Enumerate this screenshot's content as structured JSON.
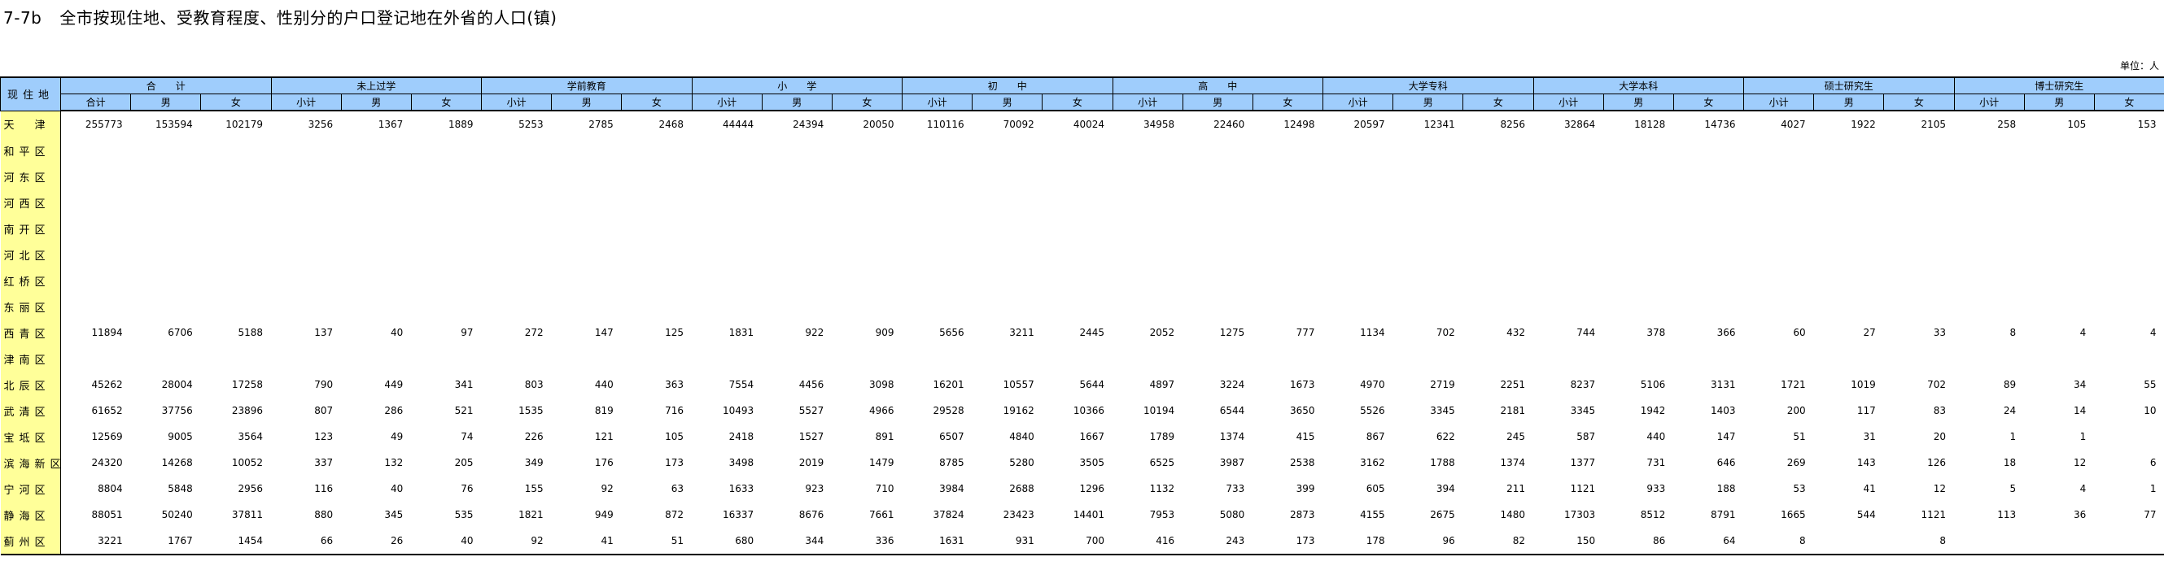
{
  "title": {
    "code": "7-7b",
    "text": "全市按现住地、受教育程度、性别分的户口登记地在外省的人口(镇)"
  },
  "unit": "单位：人",
  "header": {
    "region_label": "现住地",
    "groups": [
      "合　　计",
      "未上过学",
      "学前教育",
      "小　　学",
      "初　　中",
      "高　　中",
      "大学专科",
      "大学本科",
      "硕士研究生",
      "博士研究生"
    ],
    "subs": [
      [
        "合计",
        "男",
        "女"
      ],
      [
        "小计",
        "男",
        "女"
      ],
      [
        "小计",
        "男",
        "女"
      ],
      [
        "小计",
        "男",
        "女"
      ],
      [
        "小计",
        "男",
        "女"
      ],
      [
        "小计",
        "男",
        "女"
      ],
      [
        "小计",
        "男",
        "女"
      ],
      [
        "小计",
        "男",
        "女"
      ],
      [
        "小计",
        "男",
        "女"
      ],
      [
        "小计",
        "男",
        "女"
      ]
    ]
  },
  "rows": [
    {
      "name": "天　津",
      "v": [
        "255773",
        "153594",
        "102179",
        "3256",
        "1367",
        "1889",
        "5253",
        "2785",
        "2468",
        "44444",
        "24394",
        "20050",
        "110116",
        "70092",
        "40024",
        "34958",
        "22460",
        "12498",
        "20597",
        "12341",
        "8256",
        "32864",
        "18128",
        "14736",
        "4027",
        "1922",
        "2105",
        "258",
        "105",
        "153"
      ]
    },
    {
      "name": "和平区",
      "v": [
        "",
        "",
        "",
        "",
        "",
        "",
        "",
        "",
        "",
        "",
        "",
        "",
        "",
        "",
        "",
        "",
        "",
        "",
        "",
        "",
        "",
        "",
        "",
        "",
        "",
        "",
        "",
        "",
        "",
        ""
      ]
    },
    {
      "name": "河东区",
      "v": [
        "",
        "",
        "",
        "",
        "",
        "",
        "",
        "",
        "",
        "",
        "",
        "",
        "",
        "",
        "",
        "",
        "",
        "",
        "",
        "",
        "",
        "",
        "",
        "",
        "",
        "",
        "",
        "",
        "",
        ""
      ]
    },
    {
      "name": "河西区",
      "v": [
        "",
        "",
        "",
        "",
        "",
        "",
        "",
        "",
        "",
        "",
        "",
        "",
        "",
        "",
        "",
        "",
        "",
        "",
        "",
        "",
        "",
        "",
        "",
        "",
        "",
        "",
        "",
        "",
        "",
        ""
      ]
    },
    {
      "name": "南开区",
      "v": [
        "",
        "",
        "",
        "",
        "",
        "",
        "",
        "",
        "",
        "",
        "",
        "",
        "",
        "",
        "",
        "",
        "",
        "",
        "",
        "",
        "",
        "",
        "",
        "",
        "",
        "",
        "",
        "",
        "",
        ""
      ]
    },
    {
      "name": "河北区",
      "v": [
        "",
        "",
        "",
        "",
        "",
        "",
        "",
        "",
        "",
        "",
        "",
        "",
        "",
        "",
        "",
        "",
        "",
        "",
        "",
        "",
        "",
        "",
        "",
        "",
        "",
        "",
        "",
        "",
        "",
        ""
      ]
    },
    {
      "name": "红桥区",
      "v": [
        "",
        "",
        "",
        "",
        "",
        "",
        "",
        "",
        "",
        "",
        "",
        "",
        "",
        "",
        "",
        "",
        "",
        "",
        "",
        "",
        "",
        "",
        "",
        "",
        "",
        "",
        "",
        "",
        "",
        ""
      ]
    },
    {
      "name": "东丽区",
      "v": [
        "",
        "",
        "",
        "",
        "",
        "",
        "",
        "",
        "",
        "",
        "",
        "",
        "",
        "",
        "",
        "",
        "",
        "",
        "",
        "",
        "",
        "",
        "",
        "",
        "",
        "",
        "",
        "",
        "",
        ""
      ]
    },
    {
      "name": "西青区",
      "v": [
        "11894",
        "6706",
        "5188",
        "137",
        "40",
        "97",
        "272",
        "147",
        "125",
        "1831",
        "922",
        "909",
        "5656",
        "3211",
        "2445",
        "2052",
        "1275",
        "777",
        "1134",
        "702",
        "432",
        "744",
        "378",
        "366",
        "60",
        "27",
        "33",
        "8",
        "4",
        "4"
      ]
    },
    {
      "name": "津南区",
      "v": [
        "",
        "",
        "",
        "",
        "",
        "",
        "",
        "",
        "",
        "",
        "",
        "",
        "",
        "",
        "",
        "",
        "",
        "",
        "",
        "",
        "",
        "",
        "",
        "",
        "",
        "",
        "",
        "",
        "",
        ""
      ]
    },
    {
      "name": "北辰区",
      "v": [
        "45262",
        "28004",
        "17258",
        "790",
        "449",
        "341",
        "803",
        "440",
        "363",
        "7554",
        "4456",
        "3098",
        "16201",
        "10557",
        "5644",
        "4897",
        "3224",
        "1673",
        "4970",
        "2719",
        "2251",
        "8237",
        "5106",
        "3131",
        "1721",
        "1019",
        "702",
        "89",
        "34",
        "55"
      ]
    },
    {
      "name": "武清区",
      "v": [
        "61652",
        "37756",
        "23896",
        "807",
        "286",
        "521",
        "1535",
        "819",
        "716",
        "10493",
        "5527",
        "4966",
        "29528",
        "19162",
        "10366",
        "10194",
        "6544",
        "3650",
        "5526",
        "3345",
        "2181",
        "3345",
        "1942",
        "1403",
        "200",
        "117",
        "83",
        "24",
        "14",
        "10"
      ]
    },
    {
      "name": "宝坻区",
      "v": [
        "12569",
        "9005",
        "3564",
        "123",
        "49",
        "74",
        "226",
        "121",
        "105",
        "2418",
        "1527",
        "891",
        "6507",
        "4840",
        "1667",
        "1789",
        "1374",
        "415",
        "867",
        "622",
        "245",
        "587",
        "440",
        "147",
        "51",
        "31",
        "20",
        "1",
        "1",
        ""
      ]
    },
    {
      "name": "滨海新区",
      "v": [
        "24320",
        "14268",
        "10052",
        "337",
        "132",
        "205",
        "349",
        "176",
        "173",
        "3498",
        "2019",
        "1479",
        "8785",
        "5280",
        "3505",
        "6525",
        "3987",
        "2538",
        "3162",
        "1788",
        "1374",
        "1377",
        "731",
        "646",
        "269",
        "143",
        "126",
        "18",
        "12",
        "6"
      ]
    },
    {
      "name": "宁河区",
      "v": [
        "8804",
        "5848",
        "2956",
        "116",
        "40",
        "76",
        "155",
        "92",
        "63",
        "1633",
        "923",
        "710",
        "3984",
        "2688",
        "1296",
        "1132",
        "733",
        "399",
        "605",
        "394",
        "211",
        "1121",
        "933",
        "188",
        "53",
        "41",
        "12",
        "5",
        "4",
        "1"
      ]
    },
    {
      "name": "静海区",
      "v": [
        "88051",
        "50240",
        "37811",
        "880",
        "345",
        "535",
        "1821",
        "949",
        "872",
        "16337",
        "8676",
        "7661",
        "37824",
        "23423",
        "14401",
        "7953",
        "5080",
        "2873",
        "4155",
        "2675",
        "1480",
        "17303",
        "8512",
        "8791",
        "1665",
        "544",
        "1121",
        "113",
        "36",
        "77"
      ]
    },
    {
      "name": "蓟州区",
      "v": [
        "3221",
        "1767",
        "1454",
        "66",
        "26",
        "40",
        "92",
        "41",
        "51",
        "680",
        "344",
        "336",
        "1631",
        "931",
        "700",
        "416",
        "243",
        "173",
        "178",
        "96",
        "82",
        "150",
        "86",
        "64",
        "8",
        "",
        "8",
        "",
        "",
        ""
      ]
    }
  ]
}
